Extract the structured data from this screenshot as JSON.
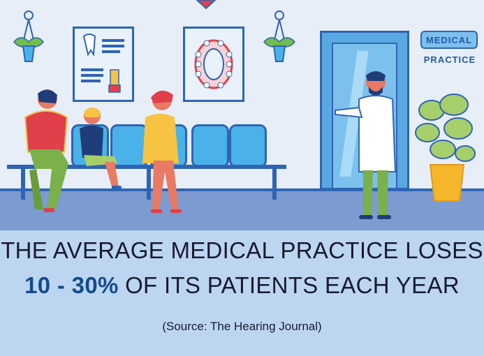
{
  "sign": {
    "line1": "MEDICAL",
    "line2": "PRACTICE"
  },
  "headline": {
    "line1": "THE AVERAGE MEDICAL PRACTICE LOSES",
    "highlight": "10 - 30%",
    "line2_rest": " OF ITS PATIENTS EACH YEAR"
  },
  "source": "(Source: The Hearing Journal)",
  "colors": {
    "wall": "#e7eef8",
    "floor": "#7c9bd1",
    "outline": "#2f64b4",
    "chair": "#4ab2e8",
    "caption_bg": "#bcd6f2",
    "highlight": "#144b8c"
  }
}
